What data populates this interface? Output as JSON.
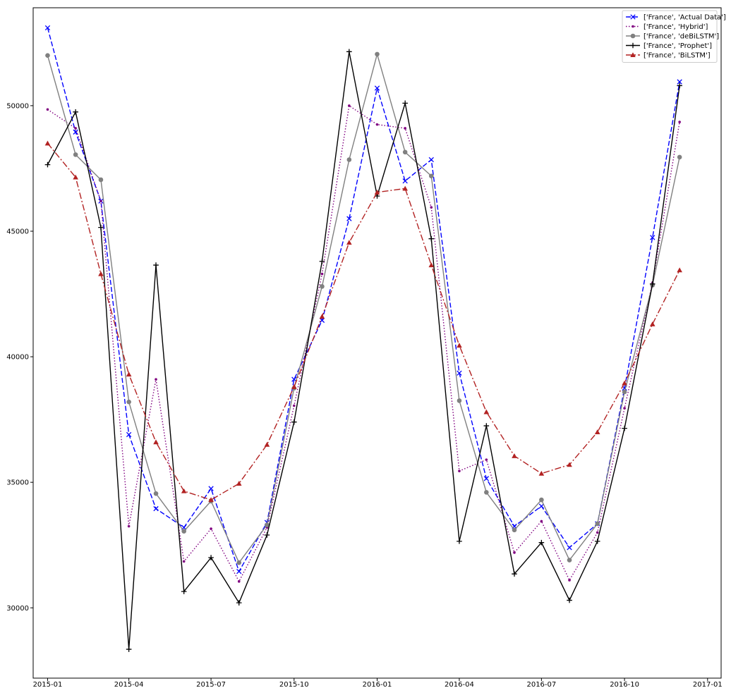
{
  "chart_data": {
    "type": "line",
    "title": "",
    "xlabel": "",
    "ylabel": "",
    "x": [
      "2015-01",
      "2015-02",
      "2015-03",
      "2015-04",
      "2015-05",
      "2015-06",
      "2015-07",
      "2015-08",
      "2015-09",
      "2015-10",
      "2015-11",
      "2015-12",
      "2016-01",
      "2016-02",
      "2016-03",
      "2016-04",
      "2016-05",
      "2016-06",
      "2016-07",
      "2016-08",
      "2016-09",
      "2016-10",
      "2016-11",
      "2016-12"
    ],
    "xlim": [
      "2014-12-16",
      "2017-01-16"
    ],
    "ylim": [
      27200,
      53900
    ],
    "x_ticks": [
      "2015-01",
      "2015-04",
      "2015-07",
      "2015-10",
      "2016-01",
      "2016-04",
      "2016-07",
      "2016-10",
      "2017-01"
    ],
    "y_ticks": [
      30000,
      35000,
      40000,
      45000,
      50000
    ],
    "grid": false,
    "legend_position": "top-right",
    "series": [
      {
        "name": "['France', 'Actual Data']",
        "color": "#0000ff",
        "dash": "dashed",
        "marker": "x",
        "values": [
          53100,
          48950,
          46200,
          36900,
          33950,
          33200,
          34750,
          31450,
          33400,
          39100,
          41450,
          45500,
          50700,
          47000,
          47850,
          39350,
          35150,
          33250,
          34050,
          32400,
          33350,
          38750,
          44750,
          50950
        ]
      },
      {
        "name": "['France', 'Hybrid']",
        "color": "#800080",
        "dash": "dotted",
        "marker": "dot",
        "values": [
          49850,
          49100,
          46200,
          33250,
          39100,
          31850,
          33150,
          31050,
          33200,
          38050,
          43300,
          50000,
          49250,
          49100,
          45950,
          35450,
          35900,
          32200,
          33450,
          31100,
          33000,
          37950,
          42950,
          49350
        ]
      },
      {
        "name": "['France', 'deBiLSTM']",
        "color": "#808080",
        "dash": "solid",
        "marker": "circle",
        "values": [
          52000,
          48050,
          47050,
          38200,
          34550,
          33050,
          34250,
          31800,
          33300,
          38750,
          42800,
          47850,
          52050,
          48150,
          47200,
          38250,
          34600,
          33100,
          34300,
          31900,
          33350,
          38600,
          42850,
          47950
        ]
      },
      {
        "name": "['France', 'Prophet']",
        "color": "#000000",
        "dash": "solid",
        "marker": "plus",
        "values": [
          47650,
          49750,
          45150,
          28350,
          43650,
          30650,
          32000,
          30200,
          32900,
          37400,
          43800,
          52150,
          46400,
          50100,
          44700,
          32650,
          37250,
          31350,
          32600,
          30300,
          32650,
          37150,
          42900,
          50800
        ]
      },
      {
        "name": "['France', 'BiLSTM']",
        "color": "#b22222",
        "dash": "dashdot",
        "marker": "triangle",
        "values": [
          48500,
          47150,
          43300,
          39300,
          36600,
          34650,
          34300,
          34950,
          36500,
          38800,
          41600,
          44550,
          46550,
          46700,
          43650,
          40450,
          37800,
          36050,
          35350,
          35700,
          37000,
          38950,
          41300,
          43450
        ]
      }
    ]
  }
}
